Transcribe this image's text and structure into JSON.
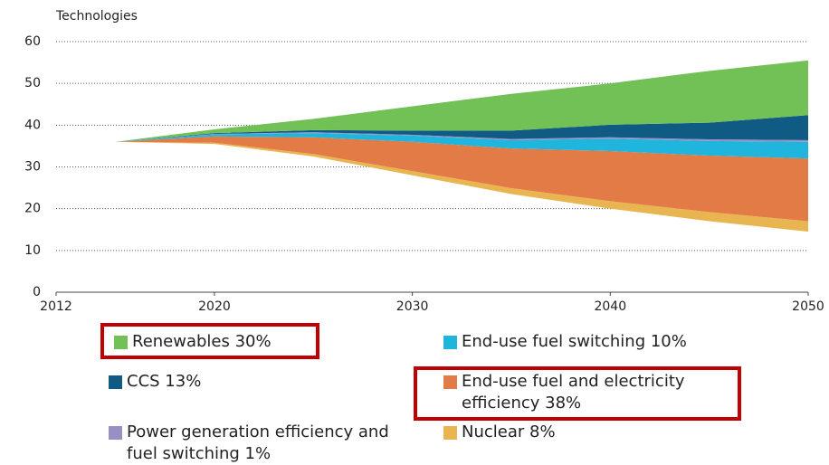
{
  "chart_data": {
    "type": "area",
    "ylabel": "Technologies",
    "x": [
      2012,
      2015,
      2020,
      2025,
      2030,
      2035,
      2040,
      2045,
      2050
    ],
    "base": [
      34.5,
      36,
      35.5,
      32.5,
      28,
      23.5,
      20,
      17,
      14.5
    ],
    "series": [
      {
        "name": "Nuclear 8%",
        "color": "#e9b550",
        "values": [
          0,
          0,
          0.3,
          0.6,
          1,
          1.4,
          1.8,
          2.2,
          2.5
        ]
      },
      {
        "name": "End-use fuel and electricity efficiency 38%",
        "color": "#e37b47",
        "values": [
          0,
          0,
          1.5,
          4,
          7,
          9.5,
          12,
          13.5,
          15
        ]
      },
      {
        "name": "End-use fuel switching 10%",
        "color": "#1fb5dc",
        "values": [
          0,
          0,
          0.5,
          1,
          1.5,
          2,
          3,
          3.5,
          4
        ]
      },
      {
        "name": "Power generation efficiency and fuel switching 1%",
        "color": "#9a8fc4",
        "values": [
          0,
          0,
          0.1,
          0.2,
          0.2,
          0.3,
          0.3,
          0.4,
          0.4
        ]
      },
      {
        "name": "CCS 13%",
        "color": "#105b84",
        "values": [
          0,
          0,
          0.2,
          0.5,
          1,
          2,
          3,
          4,
          6
        ]
      },
      {
        "name": "Renewables 30%",
        "color": "#72c157",
        "values": [
          0,
          0,
          0.9,
          2.7,
          5.8,
          8.8,
          9.9,
          12.4,
          13.1
        ]
      }
    ],
    "xlim": [
      2012,
      2050
    ],
    "xticks": [
      2012,
      2020,
      2030,
      2040,
      2050
    ],
    "ylim": [
      0,
      60
    ],
    "yticks": [
      0,
      10,
      20,
      30,
      40,
      50,
      60
    ],
    "grid": true
  }
}
